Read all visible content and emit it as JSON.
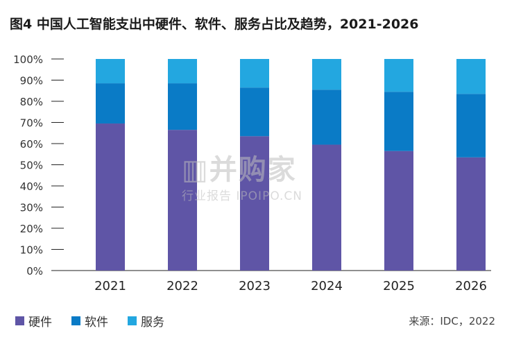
{
  "chart_data": {
    "type": "bar",
    "stacked": true,
    "title": "图4 中国人工智能支出中硬件、软件、服务占比及趋势，2021-2026",
    "categories": [
      "2021",
      "2022",
      "2023",
      "2024",
      "2025",
      "2026"
    ],
    "series": [
      {
        "name": "硬件",
        "color": "#5f55a6",
        "values": [
          69.5,
          66.5,
          63.5,
          59.5,
          56.5,
          53.5
        ]
      },
      {
        "name": "软件",
        "color": "#0a7bc6",
        "values": [
          19,
          22,
          23,
          26,
          28,
          30
        ]
      },
      {
        "name": "服务",
        "color": "#23a7e0",
        "values": [
          11.5,
          11.5,
          13.5,
          14.5,
          15.5,
          16.5
        ]
      }
    ],
    "ylim": [
      0,
      100
    ],
    "yticks": [
      "0%",
      "10%",
      "20%",
      "30%",
      "40%",
      "50%",
      "60%",
      "70%",
      "80%",
      "90%",
      "100%"
    ],
    "grid": false,
    "legend_position": "bottom-left"
  },
  "source_note": "来源：IDC，2022",
  "watermark": {
    "main": "▥并购家",
    "sub": "行业报告 IPOIPO.CN"
  }
}
